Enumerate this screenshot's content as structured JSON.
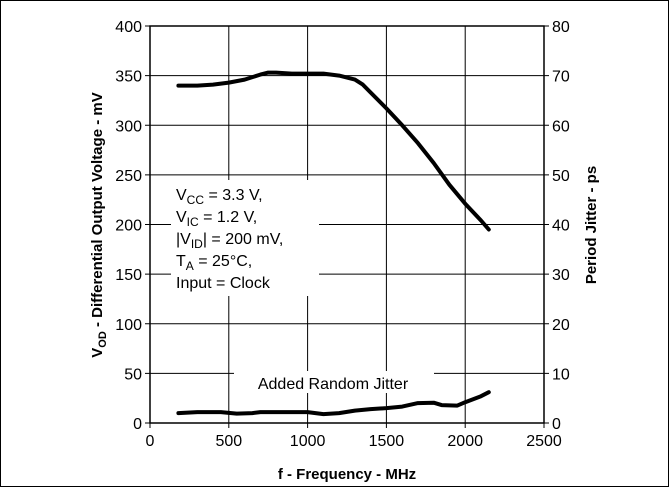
{
  "chart_data": {
    "type": "line",
    "xlabel": "f - Frequency - MHz",
    "ylabel_left": {
      "prefix": "V",
      "sub": "OD",
      "rest": " - Differential Output Voltage - mV"
    },
    "ylabel_right": "Period Jitter - ps",
    "xlim": [
      0,
      2500
    ],
    "ylim_left": [
      0,
      400
    ],
    "ylim_right": [
      0,
      80
    ],
    "x_ticks": [
      "0",
      "500",
      "1000",
      "1500",
      "2000",
      "2500"
    ],
    "y_left_ticks": [
      "0",
      "50",
      "100",
      "150",
      "200",
      "250",
      "300",
      "350",
      "400"
    ],
    "y_right_ticks": [
      "0",
      "10",
      "20",
      "30",
      "40",
      "50",
      "60",
      "70",
      "80"
    ],
    "grid": true,
    "series": [
      {
        "axis": "left",
        "x": [
          180,
          300,
          400,
          500,
          600,
          700,
          750,
          800,
          900,
          1000,
          1100,
          1200,
          1300,
          1350,
          1400,
          1500,
          1600,
          1700,
          1800,
          1900,
          2000,
          2100,
          2150
        ],
        "y": [
          340,
          340,
          341,
          343,
          346,
          351,
          353,
          353,
          352,
          352,
          352,
          350,
          346,
          341,
          333,
          317,
          300,
          282,
          262,
          240,
          221,
          204,
          195
        ]
      },
      {
        "axis": "right",
        "x": [
          180,
          300,
          450,
          550,
          650,
          700,
          800,
          1000,
          1100,
          1200,
          1300,
          1400,
          1500,
          1600,
          1700,
          1800,
          1850,
          1950,
          2000,
          2100,
          2150
        ],
        "y": [
          2,
          2.2,
          2.2,
          1.9,
          2,
          2.2,
          2.2,
          2.2,
          1.8,
          2,
          2.5,
          2.8,
          3,
          3.3,
          4,
          4.1,
          3.6,
          3.5,
          4.2,
          5.4,
          6.2
        ]
      }
    ],
    "annotation_lines": [
      {
        "p": "V",
        "sub": "CC",
        "s": " = 3.3 V,"
      },
      {
        "p": "V",
        "sub": "IC",
        "s": " = 1.2 V,"
      },
      {
        "p": "|V",
        "sub": "ID",
        "s": "| = 200 mV,"
      },
      {
        "p": "T",
        "sub": "A",
        "s": " = 25°C,"
      },
      {
        "p": "Input = Clock",
        "sub": "",
        "s": ""
      }
    ],
    "jitter_label": "Added Random Jitter"
  }
}
